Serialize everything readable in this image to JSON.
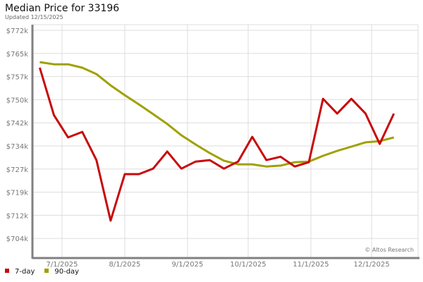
{
  "chart_data": {
    "type": "line",
    "title": "Median Price for 33196",
    "subtitle": "Updated 12/15/2025",
    "watermark": "© Altos Research",
    "x": [
      "2025-06-20",
      "2025-06-27",
      "2025-07-04",
      "2025-07-11",
      "2025-07-18",
      "2025-07-25",
      "2025-08-01",
      "2025-08-08",
      "2025-08-15",
      "2025-08-22",
      "2025-08-29",
      "2025-09-05",
      "2025-09-12",
      "2025-09-19",
      "2025-09-26",
      "2025-10-03",
      "2025-10-10",
      "2025-10-17",
      "2025-10-24",
      "2025-10-31",
      "2025-11-07",
      "2025-11-14",
      "2025-11-21",
      "2025-11-28",
      "2025-12-05",
      "2025-12-12"
    ],
    "xticks": [
      {
        "date": "2025-07-01",
        "label": "7/1/2025"
      },
      {
        "date": "2025-08-01",
        "label": "8/1/2025"
      },
      {
        "date": "2025-09-01",
        "label": "9/1/2025"
      },
      {
        "date": "2025-10-01",
        "label": "10/1/2025"
      },
      {
        "date": "2025-11-01",
        "label": "11/1/2025"
      },
      {
        "date": "2025-12-01",
        "label": "12/1/2025"
      }
    ],
    "yticks": [
      {
        "value": 704,
        "label": "$704k"
      },
      {
        "value": 712,
        "label": "$712k"
      },
      {
        "value": 719,
        "label": "$719k"
      },
      {
        "value": 727,
        "label": "$727k"
      },
      {
        "value": 734,
        "label": "$734k"
      },
      {
        "value": 742,
        "label": "$742k"
      },
      {
        "value": 750,
        "label": "$750k"
      },
      {
        "value": 757,
        "label": "$757k"
      },
      {
        "value": 765,
        "label": "$765k"
      },
      {
        "value": 772,
        "label": "$772k"
      }
    ],
    "yunit": "thousands USD",
    "grid": true,
    "legend_placement": "bottom-left",
    "series": [
      {
        "name": "7-day",
        "color": "#c8090b",
        "values": [
          759.8,
          744.3,
          737.0,
          738.8,
          729.6,
          709.8,
          725.0,
          725.0,
          726.8,
          732.4,
          726.8,
          729.1,
          729.6,
          726.8,
          729.1,
          737.2,
          729.6,
          730.7,
          727.5,
          728.9,
          749.6,
          744.8,
          749.6,
          744.8,
          734.9,
          744.8
        ]
      },
      {
        "name": "90-day",
        "color": "#a0a000",
        "values": [
          761.6,
          760.9,
          760.9,
          759.8,
          757.7,
          754.0,
          750.8,
          747.8,
          744.6,
          741.4,
          737.7,
          734.7,
          731.9,
          729.4,
          728.2,
          728.2,
          727.5,
          727.8,
          728.9,
          729.1,
          731.0,
          732.6,
          734.0,
          735.4,
          735.8,
          737.0
        ]
      }
    ]
  }
}
